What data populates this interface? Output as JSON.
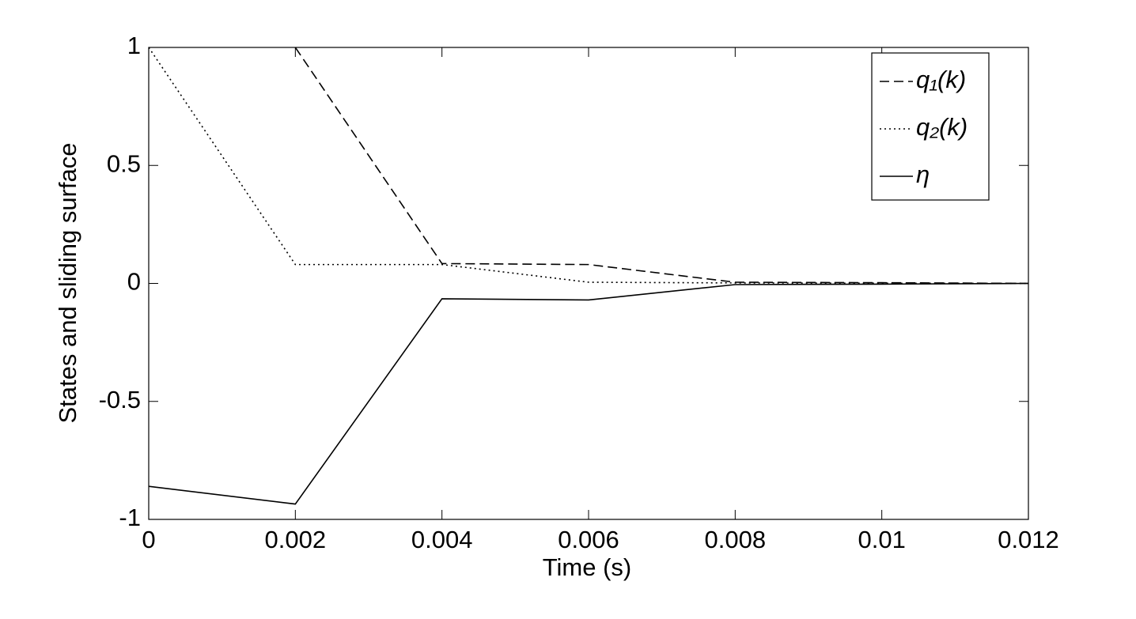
{
  "chart_data": {
    "type": "line",
    "xlabel": "Time (s)",
    "ylabel": "States and sliding surface",
    "x": [
      0,
      0.002,
      0.004,
      0.006,
      0.008,
      0.01,
      0.012
    ],
    "series": [
      {
        "name": "q₁(k)",
        "color": "#000000",
        "dash": "dashed",
        "values": [
          null,
          1,
          0.084,
          0.08,
          0.005,
          0.003,
          0
        ]
      },
      {
        "name": "q₂(k)",
        "color": "#000000",
        "dash": "dotted",
        "values": [
          1,
          0.08,
          0.08,
          0.005,
          0.002,
          0.001,
          0
        ]
      },
      {
        "name": "η",
        "color": "#000000",
        "dash": "solid",
        "values": [
          -0.86,
          -0.935,
          -0.065,
          -0.07,
          -0.005,
          -0.003,
          0
        ]
      }
    ],
    "xlim": [
      0,
      0.012
    ],
    "xticks": [
      0,
      0.002,
      0.004,
      0.006,
      0.008,
      0.01,
      0.012
    ],
    "ylim": [
      -1,
      1
    ],
    "yticks": [
      -1,
      -0.5,
      0,
      0.5,
      1
    ],
    "grid": false,
    "legend": "upper right"
  }
}
